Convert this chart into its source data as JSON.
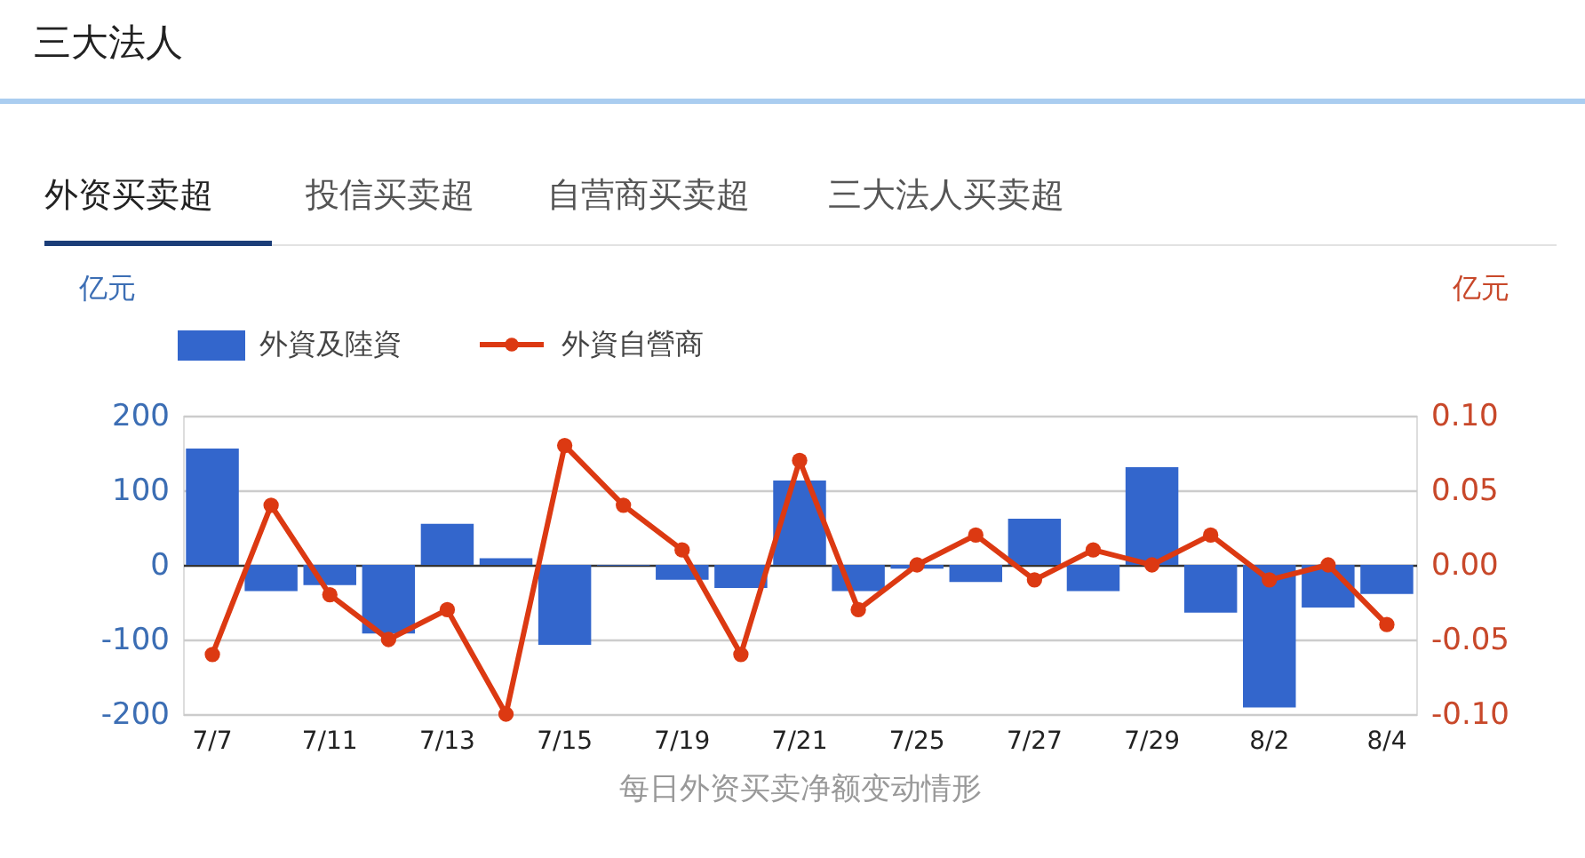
{
  "chart_data": {
    "type": "bar",
    "title": "三大法人",
    "annotations": [
      "外资买卖超",
      "投信买卖超",
      "自营商买卖超",
      "三大法人买卖超"
    ],
    "xlabel": "每日外资买卖净额变动情形",
    "ylabel": "亿元",
    "y2label": "亿元",
    "categories": [
      "7/7",
      null,
      "7/11",
      null,
      "7/13",
      null,
      "7/15",
      null,
      "7/19",
      null,
      "7/21",
      null,
      "7/25",
      null,
      "7/27",
      null,
      "7/29",
      null,
      "8/2",
      null,
      "8/4"
    ],
    "series": [
      {
        "name": "外資及陸資",
        "color": "#3366cc",
        "values": [
          156,
          -35,
          -27,
          -92,
          55,
          9,
          -107,
          -1,
          -20,
          -31,
          113,
          -35,
          -5,
          -23,
          62,
          -35,
          131,
          -64,
          -191,
          -57,
          -39
        ]
      },
      {
        "name": "外資自營商",
        "type": "line",
        "axis": "y2",
        "color": "#dc3912",
        "values": [
          -0.06,
          0.04,
          -0.02,
          -0.05,
          -0.03,
          -0.1,
          0.08,
          0.04,
          0.01,
          -0.06,
          0.07,
          -0.03,
          0.0,
          0.02,
          -0.01,
          0.01,
          0.0,
          0.02,
          -0.01,
          0.0,
          -0.04
        ]
      }
    ],
    "ylim": [
      -200,
      200
    ],
    "yticks": [
      -200,
      -100,
      0,
      100,
      200
    ],
    "y2lim": [
      -0.1,
      0.1
    ],
    "y2ticks": [
      {
        "value": -0.1,
        "label": "-0.10"
      },
      {
        "value": -0.05,
        "label": "-0.05"
      },
      {
        "value": 0,
        "label": "0.00"
      },
      {
        "value": 0.05,
        "label": "0.05"
      },
      {
        "value": 0.1,
        "label": "0.10"
      }
    ],
    "grid": "y",
    "legend": "top left",
    "marker": "circle",
    "line_style": "solid"
  }
}
